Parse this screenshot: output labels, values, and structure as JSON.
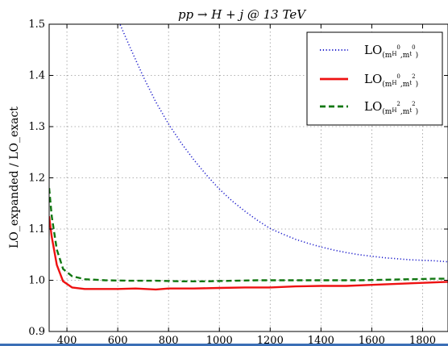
{
  "chart_data": {
    "type": "line",
    "title": "pp → H + j @ 13 TeV",
    "xlabel": "",
    "ylabel": "LO_expanded / LO_exact",
    "xlim": [
      330,
      1900
    ],
    "ylim": [
      0.9,
      1.5
    ],
    "xticks": [
      "400",
      "600",
      "800",
      "1000",
      "1200",
      "1400",
      "1600",
      "1800"
    ],
    "xtick_values": [
      400,
      600,
      800,
      1000,
      1200,
      1400,
      1600,
      1800
    ],
    "yticks": [
      "0.9",
      "1.0",
      "1.1",
      "1.2",
      "1.3",
      "1.4",
      "1.5"
    ],
    "ytick_values": [
      0.9,
      1.0,
      1.1,
      1.2,
      1.3,
      1.4,
      1.5
    ],
    "grid": true,
    "legend_position": "top-right",
    "series": [
      {
        "name": "LO_(mH^0, mt^0)",
        "legend_main": "LO",
        "legend_sub": "(m",
        "legend_sub2": "H",
        "legend_sup1": "0",
        "legend_sub3": ",m",
        "legend_sub4": "t",
        "legend_sup2": "0",
        "legend_sub5": ")",
        "color": "#1f1fcc",
        "style": "dotted",
        "x": [
          600,
          650,
          700,
          750,
          800,
          850,
          900,
          950,
          1000,
          1050,
          1100,
          1150,
          1200,
          1250,
          1300,
          1350,
          1400,
          1450,
          1500,
          1550,
          1600,
          1650,
          1700,
          1750,
          1800,
          1850,
          1900
        ],
        "y": [
          1.51,
          1.453,
          1.398,
          1.348,
          1.305,
          1.268,
          1.235,
          1.205,
          1.178,
          1.155,
          1.135,
          1.117,
          1.101,
          1.09,
          1.08,
          1.072,
          1.065,
          1.059,
          1.054,
          1.05,
          1.047,
          1.044,
          1.042,
          1.04,
          1.039,
          1.038,
          1.036
        ]
      },
      {
        "name": "LO_(mH^0, mt^2)",
        "legend_main": "LO",
        "legend_sub": "(m",
        "legend_sub2": "H",
        "legend_sup1": "0",
        "legend_sub3": ",m",
        "legend_sub4": "t",
        "legend_sup2": "2",
        "legend_sub5": ")",
        "color": "#ee1111",
        "style": "solid",
        "x": [
          330,
          340,
          360,
          385,
          420,
          470,
          550,
          600,
          670,
          750,
          800,
          900,
          1000,
          1100,
          1200,
          1300,
          1400,
          1500,
          1600,
          1700,
          1800,
          1900
        ],
        "y": [
          1.125,
          1.085,
          1.03,
          0.998,
          0.986,
          0.983,
          0.983,
          0.983,
          0.984,
          0.982,
          0.984,
          0.984,
          0.985,
          0.986,
          0.986,
          0.988,
          0.989,
          0.989,
          0.991,
          0.993,
          0.995,
          0.997
        ]
      },
      {
        "name": "LO_(mH^2, mt^2)",
        "legend_main": "LO",
        "legend_sub": "(m",
        "legend_sub2": "H",
        "legend_sup1": "2",
        "legend_sub3": ",m",
        "legend_sub4": "t",
        "legend_sup2": "2",
        "legend_sub5": ")",
        "color": "#117711",
        "style": "dashed",
        "x": [
          330,
          340,
          360,
          385,
          420,
          470,
          550,
          650,
          750,
          850,
          950,
          1050,
          1150,
          1250,
          1350,
          1450,
          1550,
          1650,
          1750,
          1850,
          1900
        ],
        "y": [
          1.18,
          1.125,
          1.06,
          1.022,
          1.008,
          1.002,
          1.0,
          0.999,
          0.999,
          0.998,
          0.998,
          0.999,
          1.0,
          1.0,
          1.0,
          1.0,
          1.0,
          1.001,
          1.002,
          1.003,
          1.003
        ]
      }
    ]
  }
}
